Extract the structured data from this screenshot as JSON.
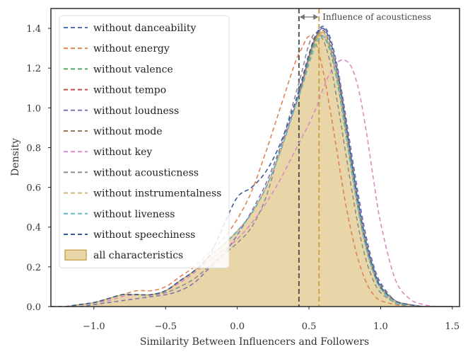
{
  "chart_data": {
    "type": "area",
    "title": "",
    "xlabel": "Similarity Between Influencers and Followers",
    "ylabel": "Density",
    "xlim": [
      -1.3,
      1.55
    ],
    "ylim": [
      0.0,
      1.5
    ],
    "xticks": [
      -1.0,
      -0.5,
      0.0,
      0.5,
      1.0,
      1.5
    ],
    "xtick_labels": [
      "−1.0",
      "−0.5",
      "0.0",
      "0.5",
      "1.0",
      "1.5"
    ],
    "yticks": [
      0.0,
      0.2,
      0.4,
      0.6,
      0.8,
      1.0,
      1.2,
      1.4
    ],
    "ytick_labels": [
      "0.0",
      "0.2",
      "0.4",
      "0.6",
      "0.8",
      "1.0",
      "1.2",
      "1.4"
    ],
    "grid": false,
    "legend_position": "top-left",
    "x": [
      -1.3,
      -1.2,
      -1.1,
      -1.0,
      -0.9,
      -0.8,
      -0.7,
      -0.6,
      -0.5,
      -0.4,
      -0.3,
      -0.2,
      -0.1,
      0.0,
      0.1,
      0.2,
      0.3,
      0.4,
      0.45,
      0.5,
      0.55,
      0.6,
      0.65,
      0.7,
      0.75,
      0.8,
      0.85,
      0.9,
      0.95,
      1.0,
      1.1,
      1.2,
      1.3,
      1.4,
      1.5
    ],
    "series": [
      {
        "name": "without danceability",
        "color": "#4c72b0",
        "dash": true,
        "values": [
          0.0,
          0.0,
          0.01,
          0.02,
          0.04,
          0.06,
          0.06,
          0.06,
          0.08,
          0.13,
          0.18,
          0.25,
          0.31,
          0.38,
          0.47,
          0.6,
          0.78,
          1.0,
          1.12,
          1.26,
          1.37,
          1.41,
          1.35,
          1.2,
          0.98,
          0.74,
          0.52,
          0.34,
          0.2,
          0.11,
          0.03,
          0.01,
          0.0,
          0.0,
          0.0
        ]
      },
      {
        "name": "without energy",
        "color": "#dd8452",
        "dash": true,
        "values": [
          0.0,
          0.0,
          0.01,
          0.02,
          0.04,
          0.06,
          0.08,
          0.08,
          0.1,
          0.15,
          0.2,
          0.27,
          0.34,
          0.44,
          0.58,
          0.78,
          1.0,
          1.22,
          1.3,
          1.36,
          1.32,
          1.18,
          0.98,
          0.76,
          0.54,
          0.36,
          0.22,
          0.12,
          0.06,
          0.03,
          0.01,
          0.0,
          0.0,
          0.0,
          0.0
        ]
      },
      {
        "name": "without valence",
        "color": "#55a868",
        "dash": true,
        "values": [
          0.0,
          0.0,
          0.01,
          0.02,
          0.04,
          0.06,
          0.06,
          0.06,
          0.08,
          0.13,
          0.18,
          0.25,
          0.31,
          0.38,
          0.47,
          0.6,
          0.78,
          1.0,
          1.1,
          1.24,
          1.34,
          1.36,
          1.28,
          1.12,
          0.9,
          0.67,
          0.46,
          0.29,
          0.17,
          0.09,
          0.02,
          0.01,
          0.0,
          0.0,
          0.0
        ]
      },
      {
        "name": "without tempo",
        "color": "#c44e52",
        "dash": true,
        "values": [
          0.0,
          0.0,
          0.01,
          0.02,
          0.04,
          0.06,
          0.06,
          0.06,
          0.08,
          0.13,
          0.18,
          0.25,
          0.31,
          0.38,
          0.47,
          0.6,
          0.78,
          1.0,
          1.12,
          1.26,
          1.36,
          1.39,
          1.31,
          1.16,
          0.94,
          0.7,
          0.48,
          0.31,
          0.18,
          0.1,
          0.03,
          0.01,
          0.0,
          0.0,
          0.0
        ]
      },
      {
        "name": "without loudness",
        "color": "#8172b3",
        "dash": true,
        "values": [
          0.0,
          0.0,
          0.0,
          0.01,
          0.02,
          0.03,
          0.04,
          0.05,
          0.06,
          0.08,
          0.12,
          0.19,
          0.26,
          0.36,
          0.48,
          0.62,
          0.8,
          1.0,
          1.12,
          1.26,
          1.36,
          1.4,
          1.34,
          1.2,
          0.99,
          0.76,
          0.54,
          0.35,
          0.21,
          0.12,
          0.03,
          0.01,
          0.0,
          0.0,
          0.0
        ]
      },
      {
        "name": "without mode",
        "color": "#937860",
        "dash": true,
        "values": [
          0.0,
          0.0,
          0.01,
          0.02,
          0.04,
          0.06,
          0.06,
          0.06,
          0.08,
          0.13,
          0.18,
          0.25,
          0.31,
          0.38,
          0.47,
          0.6,
          0.78,
          1.0,
          1.12,
          1.26,
          1.36,
          1.39,
          1.31,
          1.16,
          0.94,
          0.7,
          0.48,
          0.31,
          0.18,
          0.1,
          0.03,
          0.01,
          0.0,
          0.0,
          0.0
        ]
      },
      {
        "name": "without key",
        "color": "#da8bc3",
        "dash": true,
        "values": [
          0.0,
          0.0,
          0.01,
          0.02,
          0.03,
          0.05,
          0.06,
          0.06,
          0.08,
          0.12,
          0.17,
          0.23,
          0.28,
          0.34,
          0.42,
          0.52,
          0.64,
          0.78,
          0.85,
          0.92,
          1.0,
          1.1,
          1.18,
          1.23,
          1.24,
          1.2,
          1.08,
          0.88,
          0.64,
          0.42,
          0.14,
          0.04,
          0.01,
          0.0,
          0.0
        ]
      },
      {
        "name": "without acousticness",
        "color": "#8c8c8c",
        "dash": true,
        "values": [
          0.0,
          0.0,
          0.01,
          0.02,
          0.04,
          0.06,
          0.06,
          0.06,
          0.07,
          0.1,
          0.14,
          0.2,
          0.26,
          0.32,
          0.4,
          0.55,
          0.8,
          1.05,
          1.18,
          1.32,
          1.38,
          1.34,
          1.22,
          1.02,
          0.8,
          0.58,
          0.38,
          0.23,
          0.13,
          0.07,
          0.02,
          0.0,
          0.0,
          0.0,
          0.0
        ]
      },
      {
        "name": "without instrumentalness",
        "color": "#ccb974",
        "dash": true,
        "values": [
          0.0,
          0.0,
          0.01,
          0.02,
          0.04,
          0.06,
          0.06,
          0.06,
          0.08,
          0.13,
          0.18,
          0.25,
          0.31,
          0.38,
          0.47,
          0.6,
          0.78,
          1.0,
          1.1,
          1.22,
          1.33,
          1.38,
          1.3,
          1.14,
          0.92,
          0.69,
          0.47,
          0.3,
          0.18,
          0.1,
          0.03,
          0.01,
          0.0,
          0.0,
          0.0
        ]
      },
      {
        "name": "without liveness",
        "color": "#64b5cd",
        "dash": true,
        "values": [
          0.0,
          0.0,
          0.01,
          0.02,
          0.04,
          0.06,
          0.06,
          0.06,
          0.08,
          0.13,
          0.18,
          0.25,
          0.31,
          0.38,
          0.47,
          0.6,
          0.78,
          1.0,
          1.1,
          1.22,
          1.32,
          1.36,
          1.29,
          1.13,
          0.91,
          0.68,
          0.46,
          0.29,
          0.17,
          0.09,
          0.02,
          0.01,
          0.0,
          0.0,
          0.0
        ]
      },
      {
        "name": "without speechiness",
        "color": "#3a5a98",
        "dash": true,
        "values": [
          0.0,
          0.0,
          0.01,
          0.02,
          0.04,
          0.06,
          0.06,
          0.06,
          0.08,
          0.13,
          0.18,
          0.25,
          0.4,
          0.55,
          0.6,
          0.68,
          0.82,
          1.02,
          1.14,
          1.27,
          1.37,
          1.4,
          1.33,
          1.18,
          0.96,
          0.72,
          0.5,
          0.32,
          0.19,
          0.1,
          0.03,
          0.01,
          0.0,
          0.0,
          0.0
        ]
      },
      {
        "name": "all characteristics",
        "color": "#c9a24a",
        "fill": "#e8d6a8",
        "dash": false,
        "values": [
          0.0,
          0.0,
          0.01,
          0.02,
          0.04,
          0.06,
          0.06,
          0.06,
          0.08,
          0.13,
          0.18,
          0.25,
          0.31,
          0.38,
          0.47,
          0.6,
          0.78,
          1.0,
          1.11,
          1.24,
          1.35,
          1.38,
          1.3,
          1.15,
          0.93,
          0.69,
          0.47,
          0.3,
          0.18,
          0.1,
          0.03,
          0.01,
          0.0,
          0.0,
          0.0
        ]
      }
    ],
    "vlines": [
      {
        "x": 0.43,
        "color": "#555555"
      },
      {
        "x": 0.57,
        "color": "#c9a24a"
      }
    ],
    "annotation": {
      "text": "Influence of acousticness",
      "from": 0.43,
      "to": 0.57
    }
  }
}
